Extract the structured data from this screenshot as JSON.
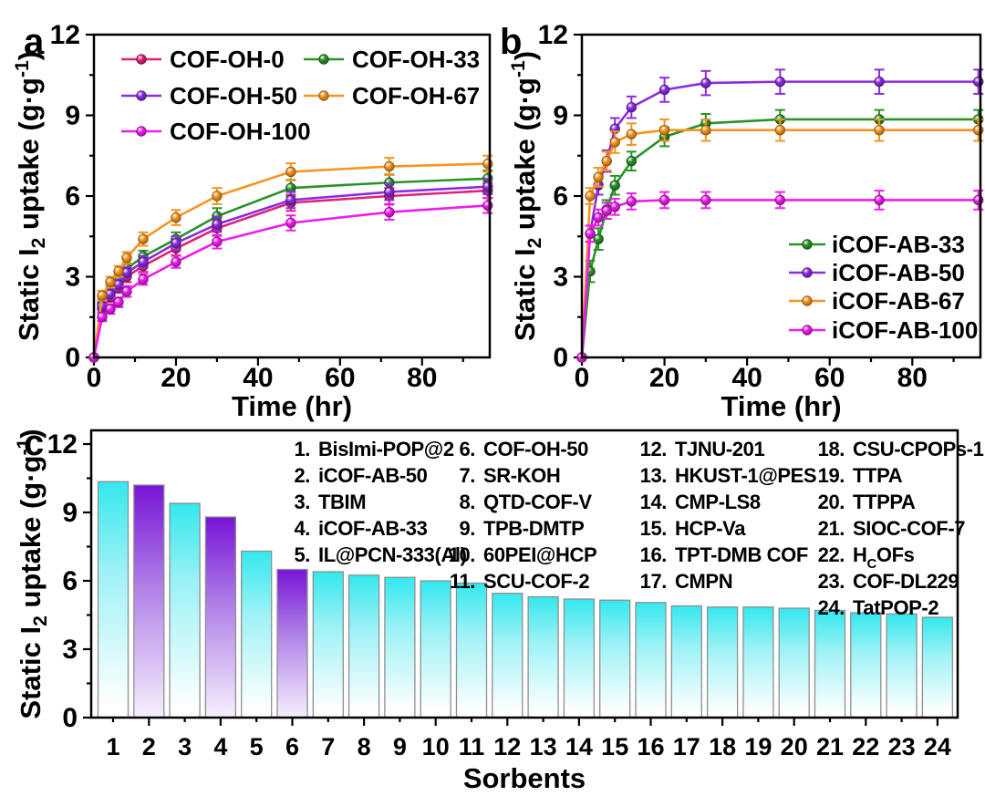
{
  "figure": {
    "panels": [
      {
        "label": "a"
      },
      {
        "label": "b"
      },
      {
        "label": "c"
      }
    ]
  },
  "colors": {
    "highlight": "#8c2be2",
    "axis": "#000000",
    "bar_outline": "#8f8f8f",
    "bar_cyan_top": "#33e8ee",
    "bar_cyan_mid": "#9ef2f6",
    "bar_cyan_bottom": "#ffffff",
    "bar_purple_top": "#7714d6",
    "bar_purple_mid": "#b183e8",
    "bar_purple_bottom": "#f6f0fd"
  },
  "chart_data": [
    {
      "id": "a",
      "type": "line",
      "xlabel": "Time (hr)",
      "ylabel": "Static I2 uptake (g·g-1)",
      "ylabel_segments": [
        {
          "t": "Static I"
        },
        {
          "t": "2",
          "s": "sub"
        },
        {
          "t": " uptake (g·g"
        },
        {
          "t": "-1",
          "s": "sup"
        },
        {
          "t": ")"
        }
      ],
      "xlim": [
        0,
        96.5
      ],
      "ylim": [
        0,
        12
      ],
      "xticks": [
        0,
        20,
        40,
        60,
        80
      ],
      "xminor": [
        10,
        30,
        50,
        70,
        90
      ],
      "yticks": [
        0,
        3,
        6,
        9,
        12
      ],
      "yminor": [
        1.5,
        4.5,
        7.5,
        10.5
      ],
      "grid": false,
      "legend_position": "top-left-2col",
      "x": [
        0,
        2,
        4,
        6,
        8,
        12,
        20,
        30,
        48,
        72,
        96
      ],
      "series": [
        {
          "name": "COF-OH-0",
          "color": "#dd2377",
          "values": [
            0,
            1.8,
            2.25,
            2.6,
            3.0,
            3.4,
            4.05,
            4.8,
            5.75,
            6.0,
            6.2
          ],
          "err": [
            0,
            0.15,
            0.18,
            0.2,
            0.2,
            0.22,
            0.25,
            0.28,
            0.3,
            0.3,
            0.28
          ]
        },
        {
          "name": "COF-OH-33",
          "color": "#289328",
          "values": [
            0,
            2.0,
            2.45,
            2.85,
            3.3,
            3.75,
            4.4,
            5.25,
            6.3,
            6.5,
            6.65
          ],
          "err": [
            0,
            0.15,
            0.18,
            0.2,
            0.2,
            0.22,
            0.25,
            0.3,
            0.3,
            0.3,
            0.3
          ]
        },
        {
          "name": "COF-OH-50",
          "color": "#8c2be2",
          "values": [
            0,
            1.9,
            2.35,
            2.7,
            3.15,
            3.55,
            4.25,
            4.95,
            5.85,
            6.15,
            6.35
          ],
          "err": [
            0,
            0.15,
            0.18,
            0.2,
            0.2,
            0.22,
            0.25,
            0.28,
            0.3,
            0.3,
            0.28
          ]
        },
        {
          "name": "COF-OH-67",
          "color": "#f79420",
          "values": [
            0,
            2.3,
            2.8,
            3.2,
            3.7,
            4.4,
            5.2,
            6.0,
            6.9,
            7.1,
            7.2
          ],
          "err": [
            0,
            0.18,
            0.2,
            0.2,
            0.22,
            0.25,
            0.28,
            0.3,
            0.32,
            0.32,
            0.3
          ]
        },
        {
          "name": "COF-OH-100",
          "color": "#ee1cee",
          "values": [
            0,
            1.5,
            1.8,
            2.05,
            2.45,
            2.9,
            3.55,
            4.3,
            5.0,
            5.4,
            5.65
          ],
          "err": [
            0,
            0.15,
            0.18,
            0.18,
            0.2,
            0.2,
            0.22,
            0.25,
            0.28,
            0.28,
            0.28
          ]
        }
      ]
    },
    {
      "id": "b",
      "type": "line",
      "xlabel": "Time (hr)",
      "ylabel": "Static I2 uptake (g·g-1)",
      "ylabel_segments": [
        {
          "t": "Static I"
        },
        {
          "t": "2",
          "s": "sub"
        },
        {
          "t": " uptake (g·g"
        },
        {
          "t": "-1",
          "s": "sup"
        },
        {
          "t": ")"
        }
      ],
      "xlim": [
        0,
        96.5
      ],
      "ylim": [
        0,
        12
      ],
      "xticks": [
        0,
        20,
        40,
        60,
        80
      ],
      "xminor": [
        10,
        30,
        50,
        70,
        90
      ],
      "yticks": [
        0,
        3,
        6,
        9,
        12
      ],
      "yminor": [
        1.5,
        4.5,
        7.5,
        10.5
      ],
      "grid": false,
      "legend_position": "bottom-right",
      "x": [
        0,
        2,
        4,
        6,
        8,
        12,
        20,
        30,
        48,
        72,
        96
      ],
      "series": [
        {
          "name": "iCOF-AB-33",
          "color": "#289328",
          "values": [
            0,
            3.2,
            4.4,
            5.5,
            6.4,
            7.3,
            8.2,
            8.7,
            8.85,
            8.85,
            8.85
          ],
          "err": [
            0,
            0.4,
            0.4,
            0.35,
            0.35,
            0.35,
            0.35,
            0.35,
            0.35,
            0.35,
            0.35
          ]
        },
        {
          "name": "iCOF-AB-50",
          "color": "#8c2be2",
          "values": [
            0,
            4.6,
            6.4,
            7.3,
            8.5,
            9.3,
            9.95,
            10.2,
            10.25,
            10.25,
            10.25
          ],
          "err": [
            0,
            0.3,
            0.35,
            0.4,
            0.4,
            0.4,
            0.45,
            0.45,
            0.45,
            0.45,
            0.45
          ]
        },
        {
          "name": "iCOF-AB-67",
          "color": "#f79420",
          "values": [
            0,
            6.0,
            6.7,
            7.3,
            8.0,
            8.3,
            8.45,
            8.45,
            8.45,
            8.45,
            8.45
          ],
          "err": [
            0,
            0.3,
            0.35,
            0.35,
            0.4,
            0.4,
            0.4,
            0.4,
            0.4,
            0.4,
            0.4
          ]
        },
        {
          "name": "iCOF-AB-100",
          "color": "#ee1cee",
          "values": [
            0,
            4.6,
            5.2,
            5.45,
            5.6,
            5.8,
            5.85,
            5.85,
            5.85,
            5.85,
            5.85
          ],
          "err": [
            0,
            0.3,
            0.3,
            0.3,
            0.3,
            0.3,
            0.3,
            0.3,
            0.3,
            0.35,
            0.35
          ]
        }
      ]
    },
    {
      "id": "c",
      "type": "bar",
      "xlabel": "Sorbents",
      "ylabel": "Static I2 uptake (g·g-1)",
      "ylabel_segments": [
        {
          "t": "Static I"
        },
        {
          "t": "2",
          "s": "sub"
        },
        {
          "t": " uptake (g·g"
        },
        {
          "t": "-1",
          "s": "sup"
        },
        {
          "t": ")"
        }
      ],
      "ylim": [
        0,
        12.6
      ],
      "yticks": [
        0,
        3,
        6,
        9,
        12
      ],
      "yminor": [
        1.5,
        4.5,
        7.5,
        10.5
      ],
      "grid": false,
      "categories": [
        1,
        2,
        3,
        4,
        5,
        6,
        7,
        8,
        9,
        10,
        11,
        12,
        13,
        14,
        15,
        16,
        17,
        18,
        19,
        20,
        21,
        22,
        23,
        24
      ],
      "values": [
        10.35,
        10.2,
        9.4,
        8.8,
        7.3,
        6.5,
        6.4,
        6.25,
        6.15,
        6.0,
        5.9,
        5.45,
        5.3,
        5.2,
        5.15,
        5.05,
        4.9,
        4.85,
        4.85,
        4.8,
        4.7,
        4.6,
        4.55,
        4.4
      ],
      "bar_styles": [
        "cyan",
        "purple",
        "cyan",
        "purple",
        "cyan",
        "purple",
        "cyan",
        "cyan",
        "cyan",
        "cyan",
        "cyan",
        "cyan",
        "cyan",
        "cyan",
        "cyan",
        "cyan",
        "cyan",
        "cyan",
        "cyan",
        "cyan",
        "cyan",
        "cyan",
        "cyan",
        "cyan"
      ],
      "legend_cols": [
        [
          {
            "n": 1,
            "name": "BisImi-POP@2",
            "hl": false
          },
          {
            "n": 2,
            "name": "iCOF-AB-50",
            "hl": true
          },
          {
            "n": 3,
            "name": "TBIM",
            "hl": false
          },
          {
            "n": 4,
            "name": "iCOF-AB-33",
            "hl": true
          },
          {
            "n": 5,
            "name": "IL@PCN-333(Al)",
            "hl": false
          }
        ],
        [
          {
            "n": 6,
            "name": "COF-OH-50",
            "hl": true
          },
          {
            "n": 7,
            "name": "SR-KOH",
            "hl": false
          },
          {
            "n": 8,
            "name": "QTD-COF-V",
            "hl": false
          },
          {
            "n": 9,
            "name": "TPB-DMTP",
            "hl": false
          },
          {
            "n": 10,
            "name": "60PEI@HCP",
            "hl": false
          },
          {
            "n": 11,
            "name": "SCU-COF-2",
            "hl": false
          }
        ],
        [
          {
            "n": 12,
            "name": "TJNU-201",
            "hl": false
          },
          {
            "n": 13,
            "name": "HKUST-1@PES",
            "hl": false
          },
          {
            "n": 14,
            "name": "CMP-LS8",
            "hl": false
          },
          {
            "n": 15,
            "name": "HCP-Va",
            "hl": false
          },
          {
            "n": 16,
            "name": "TPT-DMB COF",
            "hl": false
          },
          {
            "n": 17,
            "name": "CMPN",
            "hl": false
          }
        ],
        [
          {
            "n": 18,
            "name": "CSU-CPOPs-1",
            "hl": false
          },
          {
            "n": 19,
            "name": "TTPA",
            "hl": false
          },
          {
            "n": 20,
            "name": "TTPPA",
            "hl": false
          },
          {
            "n": 21,
            "name": "SIOC-COF-7",
            "hl": false
          },
          {
            "n": 22,
            "name": [
              {
                "t": "H"
              },
              {
                "t": "C",
                "s": "sub"
              },
              {
                "t": "OFs"
              }
            ],
            "hl": false
          },
          {
            "n": 23,
            "name": "COF-DL229",
            "hl": false
          },
          {
            "n": 24,
            "name": "TatPOP-2",
            "hl": false
          }
        ]
      ]
    }
  ]
}
